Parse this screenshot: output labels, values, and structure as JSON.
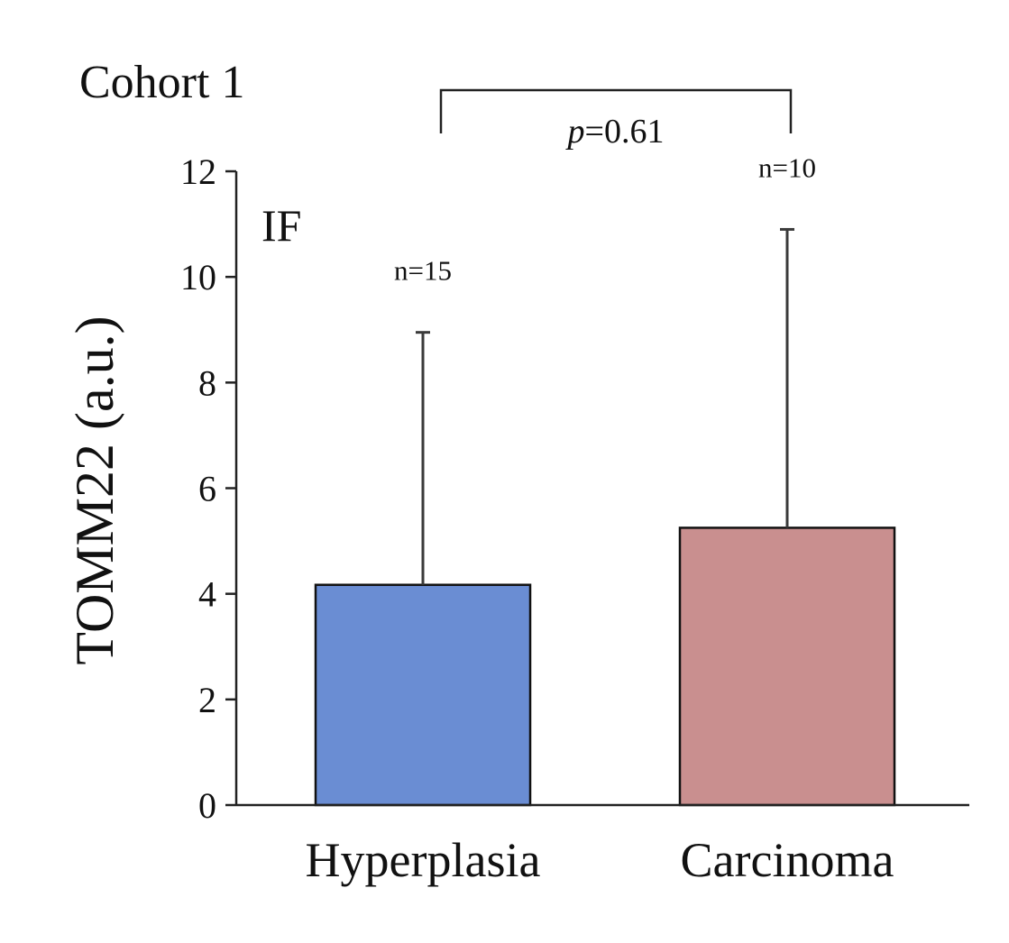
{
  "chart_data": {
    "type": "bar",
    "title": "Cohort 1",
    "panel_label": "IF",
    "ylabel": "TOMM22 (a.u.)",
    "xlabel": "",
    "ylim": [
      0,
      12
    ],
    "yticks": [
      0,
      2,
      4,
      6,
      8,
      10,
      12
    ],
    "categories": [
      "Hyperplasia",
      "Carcinoma"
    ],
    "values": [
      4.17,
      5.25
    ],
    "error_upper": [
      8.95,
      10.9
    ],
    "sample_sizes": [
      "n=15",
      "n=10"
    ],
    "bar_colors": [
      "#6a8dd3",
      "#c98f8f"
    ],
    "comparison": {
      "between": [
        "Hyperplasia",
        "Carcinoma"
      ],
      "p_symbol": "p",
      "p_rest": "=0.61"
    },
    "grid": false,
    "legend": "none"
  }
}
